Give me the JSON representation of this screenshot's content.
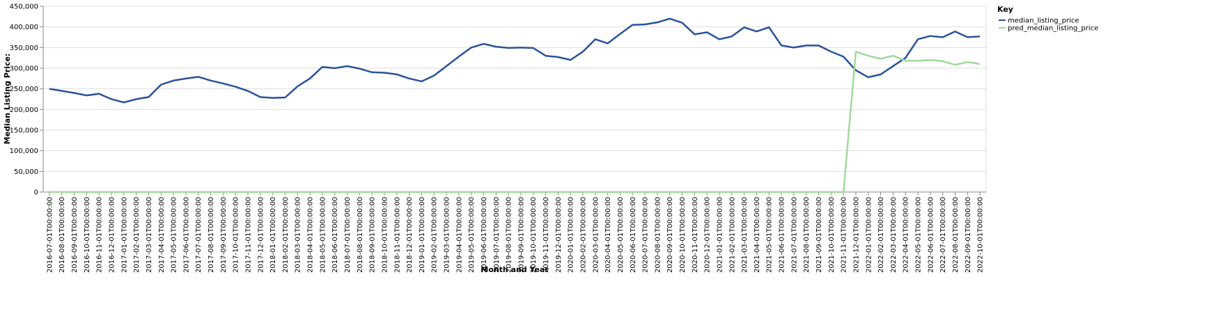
{
  "chart_data": {
    "type": "line",
    "x_label": "Month and Year",
    "y_label": "Median Listing Price:",
    "legend_title": "Key",
    "legend_position": "right",
    "grid": true,
    "categories": [
      "2016-07-01T00:00:00",
      "2016-08-01T00:00:00",
      "2016-09-01T00:00:00",
      "2016-10-01T00:00:00",
      "2016-11-01T00:00:00",
      "2016-12-01T00:00:00",
      "2017-01-01T00:00:00",
      "2017-02-01T00:00:00",
      "2017-03-01T00:00:00",
      "2017-04-01T00:00:00",
      "2017-05-01T00:00:00",
      "2017-06-01T00:00:00",
      "2017-07-01T00:00:00",
      "2017-08-01T00:00:00",
      "2017-09-01T00:00:00",
      "2017-10-01T00:00:00",
      "2017-11-01T00:00:00",
      "2017-12-01T00:00:00",
      "2018-01-01T00:00:00",
      "2018-02-01T00:00:00",
      "2018-03-01T00:00:00",
      "2018-04-01T00:00:00",
      "2018-05-01T00:00:00",
      "2018-06-01T00:00:00",
      "2018-07-01T00:00:00",
      "2018-08-01T00:00:00",
      "2018-09-01T00:00:00",
      "2018-10-01T00:00:00",
      "2018-11-01T00:00:00",
      "2018-12-01T00:00:00",
      "2019-01-01T00:00:00",
      "2019-02-01T00:00:00",
      "2019-03-01T00:00:00",
      "2019-04-01T00:00:00",
      "2019-05-01T00:00:00",
      "2019-06-01T00:00:00",
      "2019-07-01T00:00:00",
      "2019-08-01T00:00:00",
      "2019-09-01T00:00:00",
      "2019-10-01T00:00:00",
      "2019-11-01T00:00:00",
      "2019-12-01T00:00:00",
      "2020-01-01T00:00:00",
      "2020-02-01T00:00:00",
      "2020-03-01T00:00:00",
      "2020-04-01T00:00:00",
      "2020-05-01T00:00:00",
      "2020-06-01T00:00:00",
      "2020-07-01T00:00:00",
      "2020-08-01T00:00:00",
      "2020-09-01T00:00:00",
      "2020-10-01T00:00:00",
      "2020-11-01T00:00:00",
      "2020-12-01T00:00:00",
      "2021-01-01T00:00:00",
      "2021-02-01T00:00:00",
      "2021-03-01T00:00:00",
      "2021-04-01T00:00:00",
      "2021-05-01T00:00:00",
      "2021-06-01T00:00:00",
      "2021-07-01T00:00:00",
      "2021-08-01T00:00:00",
      "2021-09-01T00:00:00",
      "2021-10-01T00:00:00",
      "2021-11-01T00:00:00",
      "2021-12-01T00:00:00",
      "2022-01-01T00:00:00",
      "2022-02-01T00:00:00",
      "2022-03-01T00:00:00",
      "2022-04-01T00:00:00",
      "2022-05-01T00:00:00",
      "2022-06-01T00:00:00",
      "2022-07-01T00:00:00",
      "2022-08-01T00:00:00",
      "2022-09-01T00:00:00",
      "2022-10-01T00:00:00"
    ],
    "series": [
      {
        "name": "median_listing_price",
        "color": "#2a5298",
        "values": [
          250000,
          245000,
          240000,
          234000,
          238000,
          225000,
          217000,
          225000,
          230000,
          260000,
          270000,
          275000,
          279000,
          270000,
          263000,
          255000,
          245000,
          230000,
          228000,
          229000,
          256000,
          275000,
          303000,
          300000,
          305000,
          299000,
          290000,
          289000,
          285000,
          275000,
          268000,
          282000,
          305000,
          328000,
          350000,
          359000,
          352000,
          349000,
          350000,
          349000,
          330000,
          327000,
          320000,
          340000,
          370000,
          360000,
          383000,
          405000,
          406000,
          411000,
          420000,
          410000,
          382000,
          387000,
          370000,
          377000,
          399000,
          389000,
          399000,
          355000,
          350000,
          355000,
          355000,
          340000,
          328000,
          295000,
          278000,
          285000,
          305000,
          325000,
          370000,
          378000,
          375000,
          389000,
          375000,
          377000
        ]
      },
      {
        "name": "pred_median_listing_price",
        "color": "#a1d99b",
        "values": [
          0,
          0,
          0,
          0,
          0,
          0,
          0,
          0,
          0,
          0,
          0,
          0,
          0,
          0,
          0,
          0,
          0,
          0,
          0,
          0,
          0,
          0,
          0,
          0,
          0,
          0,
          0,
          0,
          0,
          0,
          0,
          0,
          0,
          0,
          0,
          0,
          0,
          0,
          0,
          0,
          0,
          0,
          0,
          0,
          0,
          0,
          0,
          0,
          0,
          0,
          0,
          0,
          0,
          0,
          0,
          0,
          0,
          0,
          0,
          0,
          0,
          0,
          0,
          0,
          0,
          340000,
          330000,
          323000,
          330000,
          318000,
          318000,
          320000,
          317000,
          308000,
          315000,
          310000
        ]
      }
    ],
    "ylim": [
      0,
      450000
    ],
    "yticks": [
      0,
      {
        "value": 50000,
        "label": "50,000"
      },
      {
        "value": 100000,
        "label": "100,000"
      },
      {
        "value": 150000,
        "label": "150,000"
      },
      {
        "value": 200000,
        "label": "200,000"
      },
      {
        "value": 250000,
        "label": "250,000"
      },
      {
        "value": 300000,
        "label": "300,000"
      },
      {
        "value": 350000,
        "label": "350,000"
      },
      {
        "value": 400000,
        "label": "400,000"
      },
      {
        "value": 450000,
        "label": "450,000"
      }
    ]
  }
}
